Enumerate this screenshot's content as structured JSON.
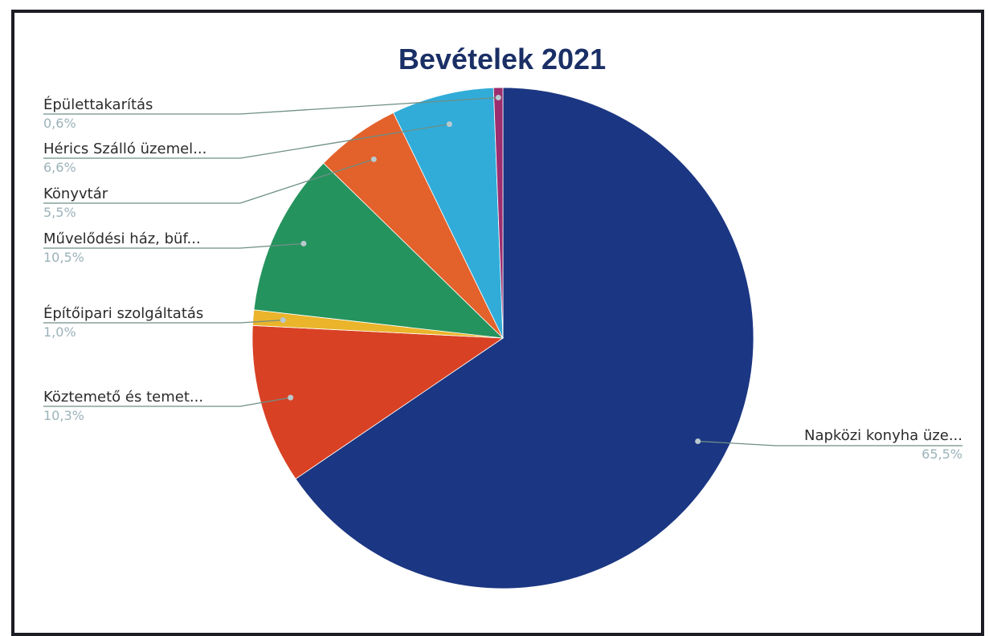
{
  "chart_data": {
    "type": "pie",
    "title": "Bevételek  2021",
    "slices": [
      {
        "label": "Napközi konyha üze...",
        "value_text": "65,5%",
        "value": 65.5,
        "color": "#1b3682"
      },
      {
        "label": "Köztemető és temet...",
        "value_text": "10,3%",
        "value": 10.3,
        "color": "#d94124"
      },
      {
        "label": "Építőipari szolgáltatás",
        "value_text": "1,0%",
        "value": 1.0,
        "color": "#eab42b"
      },
      {
        "label": "Művelődési  ház, büf...",
        "value_text": "10,5%",
        "value": 10.5,
        "color": "#25935d"
      },
      {
        "label": "Könyvtár",
        "value_text": "5,5%",
        "value": 5.5,
        "color": "#e3612b"
      },
      {
        "label": "Hérics Szálló üzemel...",
        "value_text": "6,6%",
        "value": 6.6,
        "color": "#31acd8"
      },
      {
        "label": "Épülettakarítás",
        "value_text": "0,6%",
        "value": 0.6,
        "color": "#9c2e6f"
      }
    ]
  }
}
